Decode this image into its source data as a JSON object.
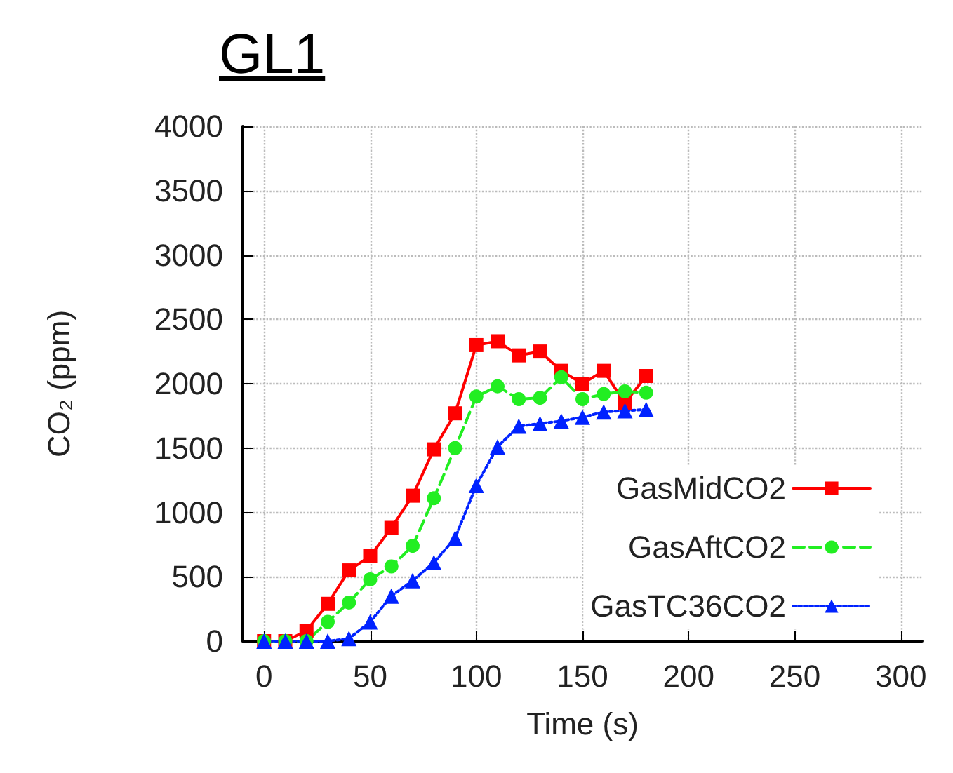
{
  "chart_data": {
    "type": "line",
    "title": "GL1",
    "xlabel": "Time (s)",
    "ylabel": "CO₂ (ppm)",
    "x": [
      0,
      10,
      20,
      30,
      40,
      50,
      60,
      70,
      80,
      90,
      100,
      110,
      120,
      130,
      140,
      150,
      160,
      170,
      180
    ],
    "series": [
      {
        "name": "GasMidCO2",
        "color": "#ff0000",
        "marker": "square",
        "line_style": "solid",
        "values": [
          0,
          0,
          80,
          290,
          550,
          660,
          880,
          1130,
          1490,
          1770,
          2300,
          2330,
          2220,
          2250,
          2100,
          2000,
          2100,
          1850,
          2060
        ]
      },
      {
        "name": "GasAftCO2",
        "color": "#22ee22",
        "marker": "circle",
        "line_style": "dashed",
        "values": [
          0,
          0,
          0,
          150,
          300,
          480,
          580,
          740,
          1110,
          1500,
          1900,
          1980,
          1880,
          1890,
          2050,
          1880,
          1920,
          1940,
          1930
        ]
      },
      {
        "name": "GasTC36CO2",
        "color": "#0022ff",
        "marker": "triangle",
        "line_style": "dotted",
        "values": [
          0,
          0,
          0,
          0,
          20,
          150,
          350,
          470,
          610,
          800,
          1210,
          1510,
          1670,
          1690,
          1710,
          1740,
          1780,
          1790,
          1800
        ]
      }
    ],
    "xlim": [
      -10,
      310
    ],
    "xticks": [
      0,
      50,
      100,
      150,
      200,
      250,
      300
    ],
    "ylim": [
      0,
      4000
    ],
    "yticks": [
      0,
      500,
      1000,
      1500,
      2000,
      2500,
      3000,
      3500,
      4000
    ],
    "grid": true,
    "legend": "right"
  }
}
